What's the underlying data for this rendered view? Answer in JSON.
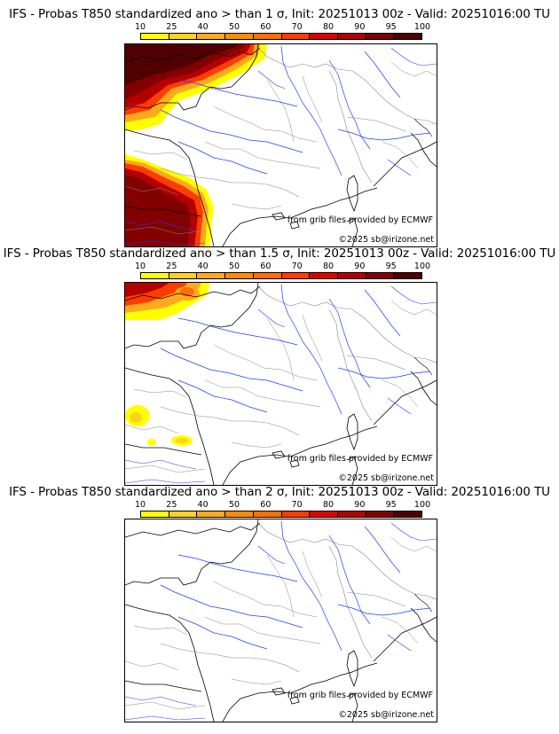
{
  "colorbar": {
    "labels": [
      "10",
      "25",
      "40",
      "50",
      "60",
      "70",
      "80",
      "90",
      "95",
      "100"
    ],
    "colors": [
      "#ffff00",
      "#ffd21e",
      "#ffaa1e",
      "#ff8c00",
      "#ff6e00",
      "#ff3c00",
      "#e10000",
      "#b40000",
      "#820000",
      "#500000"
    ]
  },
  "panels": [
    {
      "title": "IFS - Probas T850  standardized ano > than 1 σ, Init: 20251013 00z - Valid: 20251016:00 TU",
      "credit_source": "from grib files provided by ECMWF",
      "credit_copyright": "©2025 sb@irizone.net"
    },
    {
      "title": "IFS - Probas T850  standardized ano > than 1.5 σ, Init: 20251013 00z - Valid: 20251016:00 TU",
      "credit_source": "from grib files provided by ECMWF",
      "credit_copyright": "©2025 sb@irizone.net"
    },
    {
      "title": "IFS - Probas T850  standardized ano > than 2 σ, Init: 20251013 00z - Valid: 20251016:00 TU",
      "credit_source": "from grib files provided by ECMWF",
      "credit_copyright": "©2025 sb@irizone.net"
    }
  ]
}
